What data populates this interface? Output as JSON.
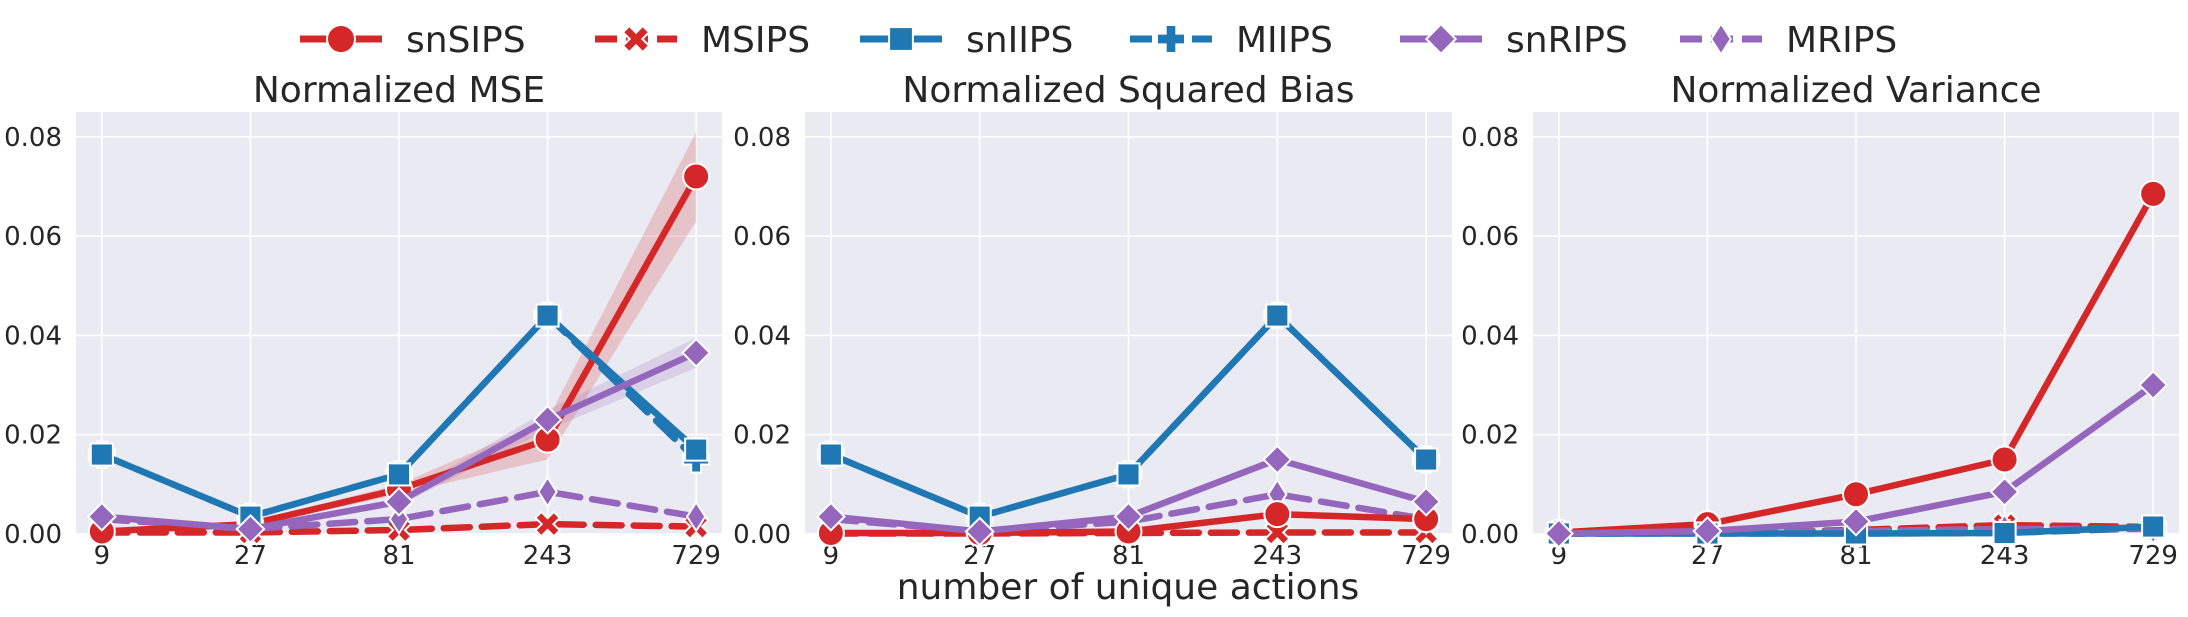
{
  "legend": {
    "placement": "top-center",
    "entries": [
      {
        "label": "snSIPS",
        "color": "#d62728",
        "dash": "solid",
        "marker": "circle"
      },
      {
        "label": "MSIPS",
        "color": "#d62728",
        "dash": "dashed",
        "marker": "x"
      },
      {
        "label": "snIIPS",
        "color": "#1f77b4",
        "dash": "solid",
        "marker": "square"
      },
      {
        "label": "MIIPS",
        "color": "#1f77b4",
        "dash": "dashed",
        "marker": "plus"
      },
      {
        "label": "snRIPS",
        "color": "#9467bd",
        "dash": "solid",
        "marker": "diamond"
      },
      {
        "label": "MRIPS",
        "color": "#9467bd",
        "dash": "dashed",
        "marker": "thin-diamond"
      }
    ]
  },
  "xlabel": "number of unique actions",
  "colors": {
    "background": "#eaeaf2",
    "grid": "#ffffff"
  },
  "chart_data": [
    {
      "type": "line",
      "title": "Normalized MSE",
      "x": [
        9,
        27,
        81,
        243,
        729
      ],
      "xscale": "log",
      "ylim": [
        0,
        0.085
      ],
      "yticks": [
        0.0,
        0.02,
        0.04,
        0.06,
        0.08
      ],
      "yticklabels": [
        "0.00",
        "0.02",
        "0.04",
        "0.06",
        "0.08"
      ],
      "grid": true,
      "series": [
        {
          "name": "snSIPS",
          "values": [
            0.0005,
            0.002,
            0.009,
            0.019,
            0.072
          ],
          "band": [
            0.0005,
            0.0005,
            0.001,
            0.004,
            0.009
          ]
        },
        {
          "name": "MSIPS",
          "values": [
            0.0003,
            0.0003,
            0.0008,
            0.002,
            0.0015
          ]
        },
        {
          "name": "snIIPS",
          "values": [
            0.016,
            0.0035,
            0.012,
            0.044,
            0.017
          ]
        },
        {
          "name": "MIIPS",
          "values": [
            0.016,
            0.0035,
            0.012,
            0.044,
            0.015
          ]
        },
        {
          "name": "snRIPS",
          "values": [
            0.0035,
            0.001,
            0.0065,
            0.023,
            0.0365
          ],
          "band": [
            0.0003,
            0.0003,
            0.0008,
            0.002,
            0.003
          ]
        },
        {
          "name": "MRIPS",
          "values": [
            0.003,
            0.001,
            0.003,
            0.0085,
            0.0035
          ]
        }
      ]
    },
    {
      "type": "line",
      "title": "Normalized Squared Bias",
      "x": [
        9,
        27,
        81,
        243,
        729
      ],
      "xscale": "log",
      "ylim": [
        0,
        0.085
      ],
      "yticks": [
        0.0,
        0.02,
        0.04,
        0.06,
        0.08
      ],
      "yticklabels": [
        "0.00",
        "0.02",
        "0.04",
        "0.06",
        "0.08"
      ],
      "grid": true,
      "series": [
        {
          "name": "snSIPS",
          "values": [
            0.0002,
            0.0002,
            0.0005,
            0.004,
            0.003
          ]
        },
        {
          "name": "MSIPS",
          "values": [
            0.0001,
            0.0001,
            0.0002,
            0.0003,
            0.0003
          ]
        },
        {
          "name": "snIIPS",
          "values": [
            0.016,
            0.0035,
            0.012,
            0.044,
            0.015
          ]
        },
        {
          "name": "MIIPS",
          "values": [
            0.016,
            0.0035,
            0.012,
            0.044,
            0.015
          ]
        },
        {
          "name": "snRIPS",
          "values": [
            0.0035,
            0.0005,
            0.0035,
            0.015,
            0.0065
          ]
        },
        {
          "name": "MRIPS",
          "values": [
            0.003,
            0.0005,
            0.0025,
            0.008,
            0.003
          ]
        }
      ]
    },
    {
      "type": "line",
      "title": "Normalized Variance",
      "x": [
        9,
        27,
        81,
        243,
        729
      ],
      "xscale": "log",
      "ylim": [
        0,
        0.085
      ],
      "yticks": [
        0.0,
        0.02,
        0.04,
        0.06,
        0.08
      ],
      "yticklabels": [
        "0.00",
        "0.02",
        "0.04",
        "0.06",
        "0.08"
      ],
      "grid": true,
      "series": [
        {
          "name": "snSIPS",
          "values": [
            0.0003,
            0.002,
            0.008,
            0.015,
            0.0685
          ]
        },
        {
          "name": "MSIPS",
          "values": [
            0.0001,
            0.0002,
            0.0008,
            0.0018,
            0.0014
          ]
        },
        {
          "name": "snIIPS",
          "values": [
            0.0001,
            0.0001,
            0.0001,
            0.0002,
            0.0015
          ]
        },
        {
          "name": "MIIPS",
          "values": [
            0.0001,
            0.0001,
            0.0001,
            0.0002,
            0.0012
          ]
        },
        {
          "name": "snRIPS",
          "values": [
            0.0001,
            0.0006,
            0.0025,
            0.0085,
            0.03
          ]
        },
        {
          "name": "MRIPS",
          "values": [
            0.0001,
            0.0003,
            0.0006,
            0.001,
            0.001
          ]
        }
      ]
    }
  ]
}
